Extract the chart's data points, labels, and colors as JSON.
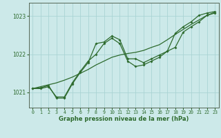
{
  "xlabel": "Graphe pression niveau de la mer (hPa)",
  "ylim": [
    1020.6,
    1023.35
  ],
  "xlim": [
    -0.5,
    23.5
  ],
  "yticks": [
    1021,
    1022,
    1023
  ],
  "xticks": [
    0,
    1,
    2,
    3,
    4,
    5,
    6,
    7,
    8,
    9,
    10,
    11,
    12,
    13,
    14,
    15,
    16,
    17,
    18,
    19,
    20,
    21,
    22,
    23
  ],
  "background_color": "#cce9e9",
  "grid_color": "#aad4d4",
  "line_color": "#2d6a2d",
  "line1_x": [
    0,
    1,
    2,
    3,
    4,
    5,
    6,
    7,
    8,
    9,
    10,
    11,
    12,
    13,
    14,
    15,
    16,
    17,
    18,
    19,
    20,
    21,
    22,
    23
  ],
  "line1_y": [
    1021.1,
    1021.1,
    1021.15,
    1020.88,
    1020.88,
    1021.25,
    1021.55,
    1021.82,
    1022.0,
    1022.28,
    1022.42,
    1022.28,
    1021.82,
    1021.68,
    1021.72,
    1021.82,
    1021.92,
    1022.08,
    1022.18,
    1022.58,
    1022.72,
    1022.85,
    1023.02,
    1023.08
  ],
  "line2_x": [
    0,
    1,
    2,
    3,
    4,
    5,
    6,
    7,
    8,
    9,
    10,
    11,
    12,
    13,
    14,
    15,
    16,
    17,
    18,
    19,
    20,
    21,
    22,
    23
  ],
  "line2_y": [
    1021.1,
    1021.12,
    1021.18,
    1020.85,
    1020.85,
    1021.22,
    1021.52,
    1021.78,
    1022.28,
    1022.32,
    1022.48,
    1022.38,
    1021.88,
    1021.88,
    1021.78,
    1021.88,
    1021.98,
    1022.08,
    1022.55,
    1022.72,
    1022.85,
    1023.02,
    1023.08,
    1023.12
  ],
  "trend_x": [
    0,
    1,
    2,
    3,
    4,
    5,
    6,
    7,
    8,
    9,
    10,
    11,
    12,
    13,
    14,
    15,
    16,
    17,
    18,
    19,
    20,
    21,
    22,
    23
  ],
  "trend_y": [
    1021.1,
    1021.15,
    1021.2,
    1021.25,
    1021.32,
    1021.4,
    1021.5,
    1021.6,
    1021.72,
    1021.82,
    1021.92,
    1021.98,
    1022.02,
    1022.05,
    1022.1,
    1022.18,
    1022.25,
    1022.38,
    1022.52,
    1022.65,
    1022.78,
    1022.9,
    1023.02,
    1023.1
  ]
}
